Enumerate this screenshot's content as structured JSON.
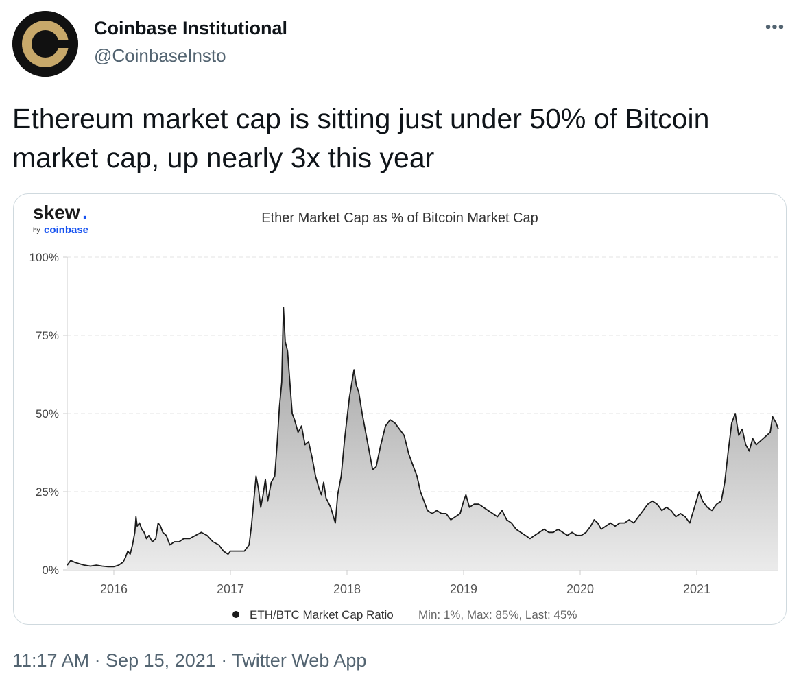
{
  "tweet": {
    "author_name": "Coinbase Institutional",
    "author_handle": "@CoinbaseInsto",
    "text": "Ethereum market cap is sitting just under 50% of Bitcoin market cap, up nearly 3x this year",
    "more_icon": "more-dots-icon"
  },
  "footer": {
    "time": "11:17 AM",
    "separator": "·",
    "date": "Sep 15, 2021",
    "source": "Twitter Web App"
  },
  "chart_brand": {
    "word": "skew",
    "dot": ".",
    "by": "by",
    "company": "coinbase"
  },
  "colors": {
    "coin_gold": "#c7a86a",
    "avatar_bg": "#111111",
    "coinbase_blue": "#1652f0",
    "line": "#1a1a1a",
    "text_secondary": "#536471"
  },
  "chart_data": {
    "type": "area",
    "title": "Ether Market Cap as % of Bitcoin Market Cap",
    "y_ticks": [
      "0%",
      "25%",
      "50%",
      "75%",
      "100%"
    ],
    "x_ticks": [
      "2016",
      "2017",
      "2018",
      "2019",
      "2020",
      "2021"
    ],
    "ylim": [
      0,
      100
    ],
    "xlim": [
      2015.6,
      2021.7
    ],
    "grid": "horizontal dashed",
    "legend_position": "bottom",
    "series": [
      {
        "name": "ETH/BTC Market Cap Ratio",
        "stats": "Min: 1%, Max: 85%, Last: 45%",
        "points": [
          [
            2015.6,
            1.5
          ],
          [
            2015.63,
            3
          ],
          [
            2015.66,
            2.5
          ],
          [
            2015.7,
            2
          ],
          [
            2015.75,
            1.5
          ],
          [
            2015.8,
            1.2
          ],
          [
            2015.85,
            1.5
          ],
          [
            2015.9,
            1.2
          ],
          [
            2015.95,
            1
          ],
          [
            2016.0,
            1
          ],
          [
            2016.04,
            1.5
          ],
          [
            2016.08,
            2.5
          ],
          [
            2016.1,
            4
          ],
          [
            2016.12,
            6
          ],
          [
            2016.14,
            5
          ],
          [
            2016.16,
            8
          ],
          [
            2016.18,
            12
          ],
          [
            2016.19,
            17
          ],
          [
            2016.2,
            14
          ],
          [
            2016.22,
            15
          ],
          [
            2016.24,
            13
          ],
          [
            2016.26,
            12
          ],
          [
            2016.28,
            10
          ],
          [
            2016.3,
            11
          ],
          [
            2016.33,
            9
          ],
          [
            2016.36,
            10
          ],
          [
            2016.38,
            15
          ],
          [
            2016.4,
            14
          ],
          [
            2016.42,
            12
          ],
          [
            2016.45,
            11
          ],
          [
            2016.48,
            8
          ],
          [
            2016.52,
            9
          ],
          [
            2016.56,
            9
          ],
          [
            2016.6,
            10
          ],
          [
            2016.65,
            10
          ],
          [
            2016.7,
            11
          ],
          [
            2016.75,
            12
          ],
          [
            2016.8,
            11
          ],
          [
            2016.85,
            9
          ],
          [
            2016.9,
            8
          ],
          [
            2016.94,
            6
          ],
          [
            2016.98,
            5
          ],
          [
            2017.0,
            6
          ],
          [
            2017.04,
            6
          ],
          [
            2017.08,
            6
          ],
          [
            2017.12,
            6
          ],
          [
            2017.16,
            8
          ],
          [
            2017.18,
            14
          ],
          [
            2017.2,
            22
          ],
          [
            2017.22,
            30
          ],
          [
            2017.24,
            26
          ],
          [
            2017.26,
            20
          ],
          [
            2017.28,
            24
          ],
          [
            2017.3,
            29
          ],
          [
            2017.32,
            22
          ],
          [
            2017.35,
            28
          ],
          [
            2017.38,
            30
          ],
          [
            2017.4,
            40
          ],
          [
            2017.42,
            52
          ],
          [
            2017.44,
            60
          ],
          [
            2017.455,
            84
          ],
          [
            2017.47,
            73
          ],
          [
            2017.49,
            70
          ],
          [
            2017.51,
            60
          ],
          [
            2017.53,
            50
          ],
          [
            2017.55,
            48
          ],
          [
            2017.58,
            44
          ],
          [
            2017.61,
            46
          ],
          [
            2017.64,
            40
          ],
          [
            2017.67,
            41
          ],
          [
            2017.7,
            36
          ],
          [
            2017.73,
            30
          ],
          [
            2017.76,
            26
          ],
          [
            2017.78,
            24
          ],
          [
            2017.8,
            28
          ],
          [
            2017.82,
            23
          ],
          [
            2017.86,
            20
          ],
          [
            2017.9,
            15
          ],
          [
            2017.92,
            24
          ],
          [
            2017.95,
            30
          ],
          [
            2017.98,
            42
          ],
          [
            2018.02,
            55
          ],
          [
            2018.06,
            64
          ],
          [
            2018.08,
            59
          ],
          [
            2018.1,
            57
          ],
          [
            2018.13,
            50
          ],
          [
            2018.16,
            44
          ],
          [
            2018.19,
            38
          ],
          [
            2018.22,
            32
          ],
          [
            2018.25,
            33
          ],
          [
            2018.29,
            40
          ],
          [
            2018.33,
            46
          ],
          [
            2018.37,
            48
          ],
          [
            2018.41,
            47
          ],
          [
            2018.45,
            45
          ],
          [
            2018.49,
            43
          ],
          [
            2018.53,
            37
          ],
          [
            2018.56,
            34
          ],
          [
            2018.6,
            30
          ],
          [
            2018.63,
            25
          ],
          [
            2018.66,
            22
          ],
          [
            2018.69,
            19
          ],
          [
            2018.73,
            18
          ],
          [
            2018.77,
            19
          ],
          [
            2018.81,
            18
          ],
          [
            2018.85,
            18
          ],
          [
            2018.89,
            16
          ],
          [
            2018.93,
            17
          ],
          [
            2018.97,
            18
          ],
          [
            2019.0,
            22
          ],
          [
            2019.02,
            24
          ],
          [
            2019.05,
            20
          ],
          [
            2019.09,
            21
          ],
          [
            2019.13,
            21
          ],
          [
            2019.17,
            20
          ],
          [
            2019.21,
            19
          ],
          [
            2019.25,
            18
          ],
          [
            2019.29,
            17
          ],
          [
            2019.33,
            19
          ],
          [
            2019.37,
            16
          ],
          [
            2019.41,
            15
          ],
          [
            2019.45,
            13
          ],
          [
            2019.49,
            12
          ],
          [
            2019.53,
            11
          ],
          [
            2019.57,
            10
          ],
          [
            2019.61,
            11
          ],
          [
            2019.65,
            12
          ],
          [
            2019.69,
            13
          ],
          [
            2019.73,
            12
          ],
          [
            2019.77,
            12
          ],
          [
            2019.81,
            13
          ],
          [
            2019.85,
            12
          ],
          [
            2019.89,
            11
          ],
          [
            2019.93,
            12
          ],
          [
            2019.97,
            11
          ],
          [
            2020.01,
            11
          ],
          [
            2020.05,
            12
          ],
          [
            2020.09,
            14
          ],
          [
            2020.12,
            16
          ],
          [
            2020.15,
            15
          ],
          [
            2020.18,
            13
          ],
          [
            2020.22,
            14
          ],
          [
            2020.26,
            15
          ],
          [
            2020.3,
            14
          ],
          [
            2020.34,
            15
          ],
          [
            2020.38,
            15
          ],
          [
            2020.42,
            16
          ],
          [
            2020.46,
            15
          ],
          [
            2020.5,
            17
          ],
          [
            2020.54,
            19
          ],
          [
            2020.58,
            21
          ],
          [
            2020.62,
            22
          ],
          [
            2020.66,
            21
          ],
          [
            2020.7,
            19
          ],
          [
            2020.74,
            20
          ],
          [
            2020.78,
            19
          ],
          [
            2020.82,
            17
          ],
          [
            2020.86,
            18
          ],
          [
            2020.9,
            17
          ],
          [
            2020.94,
            15
          ],
          [
            2020.98,
            20
          ],
          [
            2021.02,
            25
          ],
          [
            2021.05,
            22
          ],
          [
            2021.09,
            20
          ],
          [
            2021.13,
            19
          ],
          [
            2021.17,
            21
          ],
          [
            2021.21,
            22
          ],
          [
            2021.24,
            28
          ],
          [
            2021.27,
            38
          ],
          [
            2021.3,
            47
          ],
          [
            2021.33,
            50
          ],
          [
            2021.36,
            43
          ],
          [
            2021.39,
            45
          ],
          [
            2021.42,
            40
          ],
          [
            2021.45,
            38
          ],
          [
            2021.48,
            42
          ],
          [
            2021.51,
            40
          ],
          [
            2021.54,
            41
          ],
          [
            2021.57,
            42
          ],
          [
            2021.6,
            43
          ],
          [
            2021.63,
            44
          ],
          [
            2021.65,
            49
          ],
          [
            2021.68,
            47
          ],
          [
            2021.7,
            45
          ]
        ]
      }
    ]
  }
}
